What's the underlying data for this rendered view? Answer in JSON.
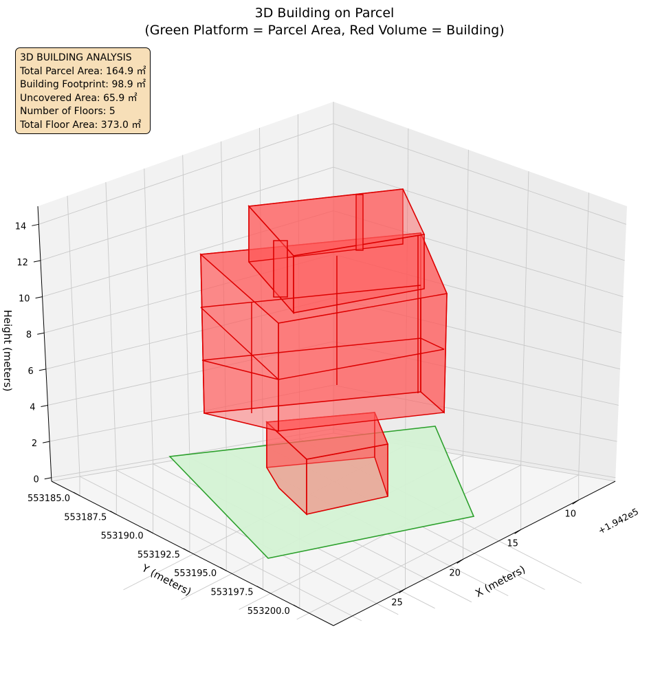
{
  "chart_data": {
    "type": "3d-polygons",
    "title_line1": "3D Building on Parcel",
    "title_line2": "(Green Platform = Parcel Area, Red Volume = Building)",
    "xlabel": "X (meters)",
    "ylabel": "Y (meters)",
    "zlabel": "Height (meters)",
    "x_offset_label": "+1.942e5",
    "x_ticks": [
      "10",
      "15",
      "20",
      "25"
    ],
    "y_ticks": [
      "553185.0",
      "553187.5",
      "553190.0",
      "553192.5",
      "553195.0",
      "553197.5",
      "553200.0"
    ],
    "z_ticks": [
      "0",
      "2",
      "4",
      "6",
      "8",
      "10",
      "12",
      "14"
    ],
    "colors": {
      "parcel_fill": "#d4f2d4",
      "parcel_edge": "#2ca02c",
      "building_fill": "#ff5a5a",
      "building_edge": "#dd0000",
      "box_fill": "#f7dfb8"
    },
    "parcel_area_m2": 164.9,
    "building_footprint_m2": 98.9,
    "floors": 5,
    "grid": true
  },
  "info_box": {
    "line1": "3D BUILDING ANALYSIS",
    "line2": "Total Parcel Area: 164.9 ㎡",
    "line3": "Building Footprint: 98.9 ㎡",
    "line4": "Uncovered Area: 65.9 ㎡",
    "line5": "Number of Floors: 5",
    "line6": "Total Floor Area: 373.0 ㎡"
  }
}
